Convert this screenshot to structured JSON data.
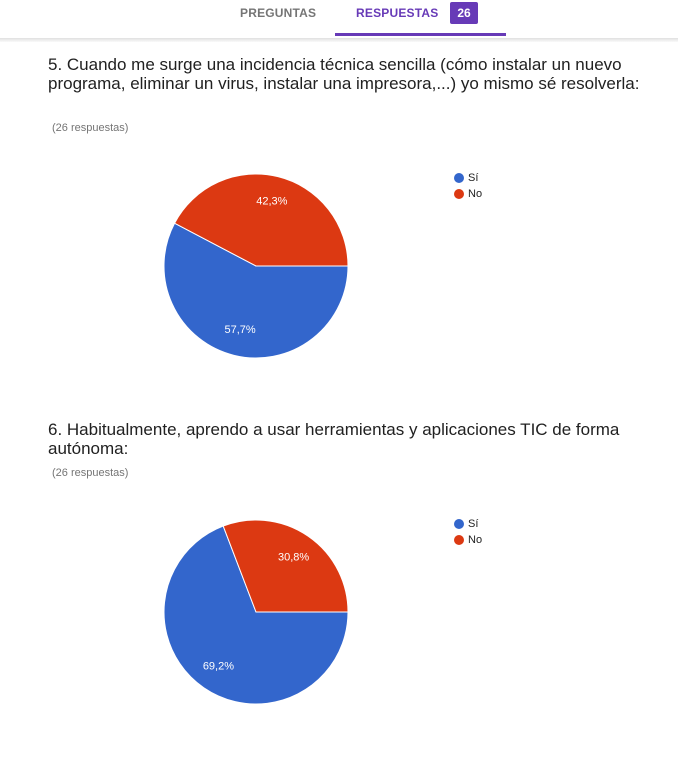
{
  "tabs": [
    {
      "label": "PREGUNTAS"
    },
    {
      "label": "RESPUESTAS",
      "count": 26
    }
  ],
  "chart_data": [
    {
      "type": "pie",
      "title": "5. Cuando me surge una incidencia técnica sencilla (cómo instalar un nuevo programa, eliminar un virus, instalar una impresora,...) yo mismo sé resolverla:",
      "subtitle": "(26 respuestas)",
      "categories": [
        "Sí",
        "No"
      ],
      "values": [
        57.7,
        42.3
      ],
      "value_labels": [
        "57,7%",
        "42,3%"
      ],
      "colors": [
        "#3366cc",
        "#dc3912"
      ],
      "start_angle": 90
    },
    {
      "type": "pie",
      "title": "6. Habitualmente, aprendo a usar herramientas y aplicaciones TIC de forma autónoma:",
      "subtitle": "(26 respuestas)",
      "categories": [
        "Sí",
        "No"
      ],
      "values": [
        69.2,
        30.8
      ],
      "value_labels": [
        "69,2%",
        "30,8%"
      ],
      "colors": [
        "#3366cc",
        "#dc3912"
      ],
      "start_angle": 90
    }
  ]
}
